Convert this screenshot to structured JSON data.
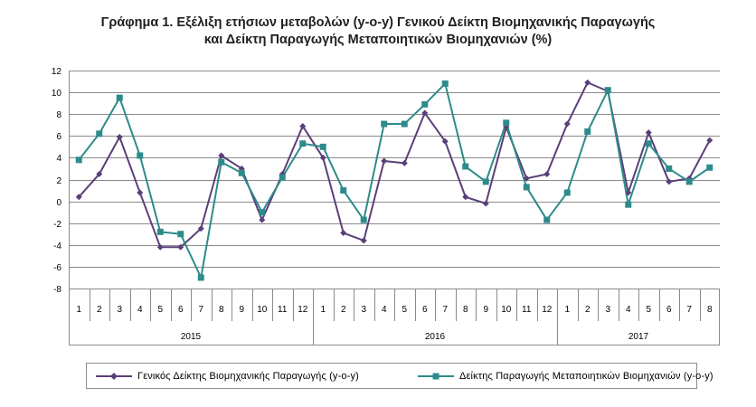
{
  "title": {
    "line1": "Γράφημα 1. Εξέλιξη ετήσιων μεταβολών (y-o-y) Γενικού Δείκτη Βιομηχανικής Παραγωγής",
    "line2": "και Δείκτη Παραγωγής Μεταποιητικών Βιομηχανιών (%)"
  },
  "chart_data": {
    "type": "line",
    "title": "Γράφημα 1. Εξέλιξη ετήσιων μεταβολών (y-o-y) Γενικού Δείκτη Βιομηχανικής Παραγωγής και Δείκτη Παραγωγής Μεταποιητικών Βιομηχανιών (%)",
    "categories": [
      "1",
      "2",
      "3",
      "4",
      "5",
      "6",
      "7",
      "8",
      "9",
      "10",
      "11",
      "12",
      "1",
      "2",
      "3",
      "4",
      "5",
      "6",
      "7",
      "8",
      "9",
      "10",
      "11",
      "12",
      "1",
      "2",
      "3",
      "4",
      "5",
      "6",
      "7",
      "8"
    ],
    "groups": [
      {
        "label": "2015",
        "count": 12
      },
      {
        "label": "2016",
        "count": 12
      },
      {
        "label": "2017",
        "count": 8
      }
    ],
    "ylim": [
      -8,
      12
    ],
    "yticks": [
      -8,
      -6,
      -4,
      -2,
      0,
      2,
      4,
      6,
      8,
      10,
      12
    ],
    "grid": true,
    "legend_position": "bottom",
    "series": [
      {
        "name": "Γενικός Δείκτης Βιομηχανικής Παραγωγής (y-o-y)",
        "color": "#5b3f78",
        "marker": "diamond",
        "values": [
          0.4,
          2.5,
          5.9,
          0.8,
          -4.2,
          -4.2,
          -2.5,
          4.2,
          3.0,
          -1.7,
          2.5,
          6.9,
          4.0,
          -2.9,
          -3.6,
          3.7,
          3.5,
          8.1,
          5.5,
          0.4,
          -0.2,
          6.8,
          2.1,
          2.5,
          7.1,
          10.9,
          10.1,
          0.8,
          6.3,
          1.8,
          2.1,
          5.6
        ]
      },
      {
        "name": "Δείκτης Παραγωγής Μεταποιητικών Βιομηχανιών (y-o-y)",
        "color": "#2e8b8b",
        "marker": "square",
        "values": [
          3.8,
          6.2,
          9.5,
          4.2,
          -2.8,
          -3.0,
          -7.0,
          3.6,
          2.6,
          -1.0,
          2.2,
          5.3,
          5.0,
          1.0,
          -1.7,
          7.1,
          7.1,
          8.9,
          10.8,
          3.2,
          1.8,
          7.2,
          1.3,
          -1.7,
          0.8,
          6.4,
          10.2,
          -0.3,
          5.3,
          3.0,
          1.8,
          3.1
        ]
      }
    ]
  }
}
